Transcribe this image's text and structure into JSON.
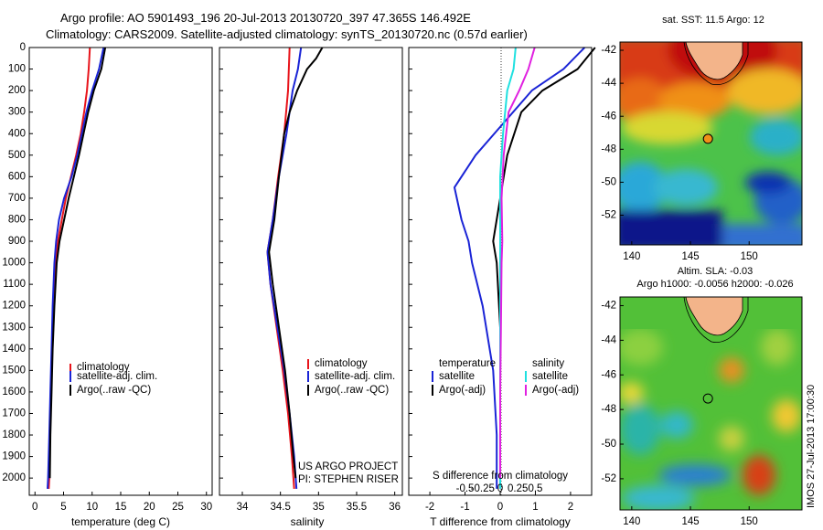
{
  "titles": {
    "line1": "Argo profile: AO 5901493_196 20-Jul-2013 20130720_397 47.365S 146.492E",
    "line2": "Climatology: CARS2009. Satellite-adjusted climatology: synTS_20130720.nc (0.57d earlier)"
  },
  "side_texts": {
    "project": "US ARGO PROJECT",
    "pi": "PI: STEPHEN RISER",
    "vertical_stamp": "IMOS 27-Jul-2013 17:00:30"
  },
  "colors": {
    "climatology": "#e8141b",
    "satellite": "#1a24d6",
    "argo": "#000000",
    "sat_salinity": "#1fe0e0",
    "argo_adj_salinity": "#e020e0"
  },
  "chart_data": [
    {
      "type": "line",
      "name": "temperature",
      "xlabel": "temperature (deg C)",
      "xlim": [
        -1,
        31
      ],
      "ylim": [
        0,
        2080
      ],
      "xticks": [
        0,
        5,
        10,
        15,
        20,
        25,
        30
      ],
      "yticks": [
        0,
        100,
        200,
        300,
        400,
        500,
        600,
        700,
        800,
        900,
        1000,
        1100,
        1200,
        1300,
        1400,
        1500,
        1600,
        1700,
        1800,
        1900,
        2000
      ],
      "legend": [
        "climatology",
        "satellite-adj. clim.",
        "Argo(..raw -QC)"
      ],
      "series": [
        {
          "name": "climatology",
          "color": "#e8141b",
          "points": [
            [
              9.6,
              0
            ],
            [
              9.4,
              100
            ],
            [
              9.1,
              200
            ],
            [
              8.6,
              300
            ],
            [
              8.0,
              400
            ],
            [
              7.2,
              500
            ],
            [
              6.3,
              600
            ],
            [
              5.4,
              700
            ],
            [
              4.7,
              800
            ],
            [
              4.0,
              900
            ],
            [
              3.6,
              1000
            ],
            [
              3.3,
              1200
            ],
            [
              3.0,
              1400
            ],
            [
              2.8,
              1600
            ],
            [
              2.6,
              1800
            ],
            [
              2.5,
              2000
            ],
            [
              2.4,
              2050
            ]
          ]
        },
        {
          "name": "satellite-adj. clim.",
          "color": "#1a24d6",
          "points": [
            [
              12.0,
              0
            ],
            [
              11.2,
              100
            ],
            [
              10.0,
              200
            ],
            [
              9.0,
              300
            ],
            [
              8.2,
              400
            ],
            [
              7.4,
              500
            ],
            [
              6.4,
              600
            ],
            [
              5.1,
              700
            ],
            [
              4.2,
              800
            ],
            [
              3.7,
              900
            ],
            [
              3.4,
              1000
            ],
            [
              3.1,
              1200
            ],
            [
              2.9,
              1400
            ],
            [
              2.7,
              1600
            ],
            [
              2.5,
              1800
            ],
            [
              2.3,
              2000
            ],
            [
              2.2,
              2050
            ]
          ]
        },
        {
          "name": "Argo(..raw -QC)",
          "color": "#000000",
          "points": [
            [
              12.3,
              0
            ],
            [
              11.6,
              100
            ],
            [
              10.3,
              200
            ],
            [
              9.3,
              300
            ],
            [
              8.5,
              400
            ],
            [
              7.7,
              500
            ],
            [
              6.8,
              600
            ],
            [
              5.9,
              700
            ],
            [
              5.1,
              800
            ],
            [
              4.3,
              900
            ],
            [
              3.8,
              1000
            ],
            [
              3.4,
              1200
            ],
            [
              3.1,
              1400
            ],
            [
              2.9,
              1600
            ],
            [
              2.7,
              1800
            ],
            [
              2.6,
              2000
            ]
          ]
        }
      ]
    },
    {
      "type": "line",
      "name": "salinity",
      "xlabel": "salinity",
      "xlim": [
        33.7,
        36.1
      ],
      "ylim": [
        0,
        2080
      ],
      "xticks": [
        34,
        34.5,
        35,
        35.5,
        36
      ],
      "xticklabels": [
        "34",
        "34.5",
        "35",
        "35.5",
        "36"
      ],
      "legend": [
        "climatology",
        "satellite-adj. clim.",
        "Argo(..raw -QC)"
      ],
      "series": [
        {
          "name": "climatology",
          "color": "#e8141b",
          "points": [
            [
              34.62,
              0
            ],
            [
              34.6,
              200
            ],
            [
              34.55,
              400
            ],
            [
              34.47,
              600
            ],
            [
              34.4,
              800
            ],
            [
              34.33,
              950
            ],
            [
              34.37,
              1100
            ],
            [
              34.45,
              1300
            ],
            [
              34.53,
              1500
            ],
            [
              34.6,
              1700
            ],
            [
              34.65,
              1900
            ],
            [
              34.68,
              2050
            ]
          ]
        },
        {
          "name": "satellite-adj. clim.",
          "color": "#1a24d6",
          "points": [
            [
              34.77,
              0
            ],
            [
              34.73,
              100
            ],
            [
              34.66,
              200
            ],
            [
              34.58,
              400
            ],
            [
              34.48,
              600
            ],
            [
              34.4,
              800
            ],
            [
              34.33,
              950
            ],
            [
              34.37,
              1100
            ],
            [
              34.46,
              1300
            ],
            [
              34.55,
              1500
            ],
            [
              34.62,
              1700
            ],
            [
              34.68,
              1900
            ],
            [
              34.71,
              2050
            ]
          ]
        },
        {
          "name": "Argo(..raw -QC)",
          "color": "#000000",
          "points": [
            [
              35.05,
              0
            ],
            [
              34.97,
              50
            ],
            [
              34.85,
              100
            ],
            [
              34.72,
              200
            ],
            [
              34.62,
              300
            ],
            [
              34.55,
              400
            ],
            [
              34.48,
              600
            ],
            [
              34.42,
              800
            ],
            [
              34.35,
              950
            ],
            [
              34.4,
              1100
            ],
            [
              34.48,
              1300
            ],
            [
              34.56,
              1500
            ],
            [
              34.62,
              1700
            ],
            [
              34.67,
              1900
            ],
            [
              34.7,
              2000
            ]
          ]
        }
      ]
    },
    {
      "type": "line",
      "name": "differences",
      "xlabel": "T difference from climatology",
      "top_xlabel": "S difference from climatology",
      "xlim": [
        -2.6,
        2.6
      ],
      "ylim": [
        0,
        2080
      ],
      "xticks": [
        -2,
        -1,
        0,
        1,
        2
      ],
      "top_xticks": [
        -0.5,
        -0.25,
        0,
        0.25,
        0.5
      ],
      "legend_headers": [
        "temperature",
        "salinity"
      ],
      "legend": [
        "satellite",
        "Argo(-adj)",
        "satellite",
        "Argo(-adj)"
      ],
      "series": [
        {
          "name": "satellite",
          "group": "temperature",
          "color": "#1a24d6",
          "points": [
            [
              2.4,
              0
            ],
            [
              1.8,
              100
            ],
            [
              0.9,
              200
            ],
            [
              0.1,
              350
            ],
            [
              -0.7,
              500
            ],
            [
              -1.3,
              650
            ],
            [
              -1.1,
              800
            ],
            [
              -0.9,
              900
            ],
            [
              -0.8,
              1000
            ],
            [
              -0.5,
              1200
            ],
            [
              -0.2,
              1500
            ],
            [
              -0.1,
              1800
            ],
            [
              -0.1,
              2050
            ]
          ]
        },
        {
          "name": "Argo(-adj)",
          "group": "temperature",
          "color": "#000000",
          "points": [
            [
              2.7,
              0
            ],
            [
              2.2,
              100
            ],
            [
              1.2,
              200
            ],
            [
              0.6,
              300
            ],
            [
              0.2,
              500
            ],
            [
              0.0,
              700
            ],
            [
              -0.2,
              900
            ],
            [
              -0.1,
              1000
            ],
            [
              0.0,
              1300
            ],
            [
              0.0,
              1600
            ],
            [
              0.0,
              1800
            ],
            [
              0.0,
              2000
            ]
          ]
        },
        {
          "name": "satellite",
          "group": "salinity",
          "color": "#1fe0e0",
          "points": [
            [
              0.22,
              0
            ],
            [
              0.19,
              100
            ],
            [
              0.1,
              200
            ],
            [
              0.04,
              400
            ],
            [
              0.0,
              600
            ],
            [
              0.0,
              800
            ],
            [
              0.0,
              1000
            ],
            [
              0.0,
              1300
            ],
            [
              0.0,
              1600
            ],
            [
              0.0,
              2050
            ]
          ]
        },
        {
          "name": "Argo(-adj)",
          "group": "salinity",
          "color": "#e020e0",
          "points": [
            [
              0.49,
              0
            ],
            [
              0.4,
              100
            ],
            [
              0.27,
              200
            ],
            [
              0.12,
              300
            ],
            [
              0.05,
              500
            ],
            [
              0.02,
              700
            ],
            [
              0.03,
              900
            ],
            [
              0.02,
              1000
            ],
            [
              0.01,
              1300
            ],
            [
              0.0,
              1600
            ],
            [
              0.0,
              2000
            ]
          ]
        }
      ]
    },
    {
      "type": "heatmap",
      "name": "sst-map",
      "title": "sat. SST: 11.5 Argo: 12",
      "xlim": [
        139,
        154.5
      ],
      "ylim": [
        -53.8,
        -41.5
      ],
      "xticks": [
        140,
        145,
        150
      ],
      "yticks": [
        -42,
        -44,
        -46,
        -48,
        -50,
        -52
      ],
      "marker": [
        146.492,
        -47.365
      ]
    },
    {
      "type": "heatmap",
      "name": "sla-map",
      "title": "Altim. SLA: -0.03",
      "subtitle": "Argo h1000: -0.0056 h2000: -0.026",
      "xlim": [
        139,
        154.5
      ],
      "ylim": [
        -53.8,
        -41.5
      ],
      "xticks": [
        140,
        145,
        150
      ],
      "yticks": [
        -42,
        -44,
        -46,
        -48,
        -50,
        -52
      ],
      "marker": [
        146.492,
        -47.365
      ]
    }
  ]
}
